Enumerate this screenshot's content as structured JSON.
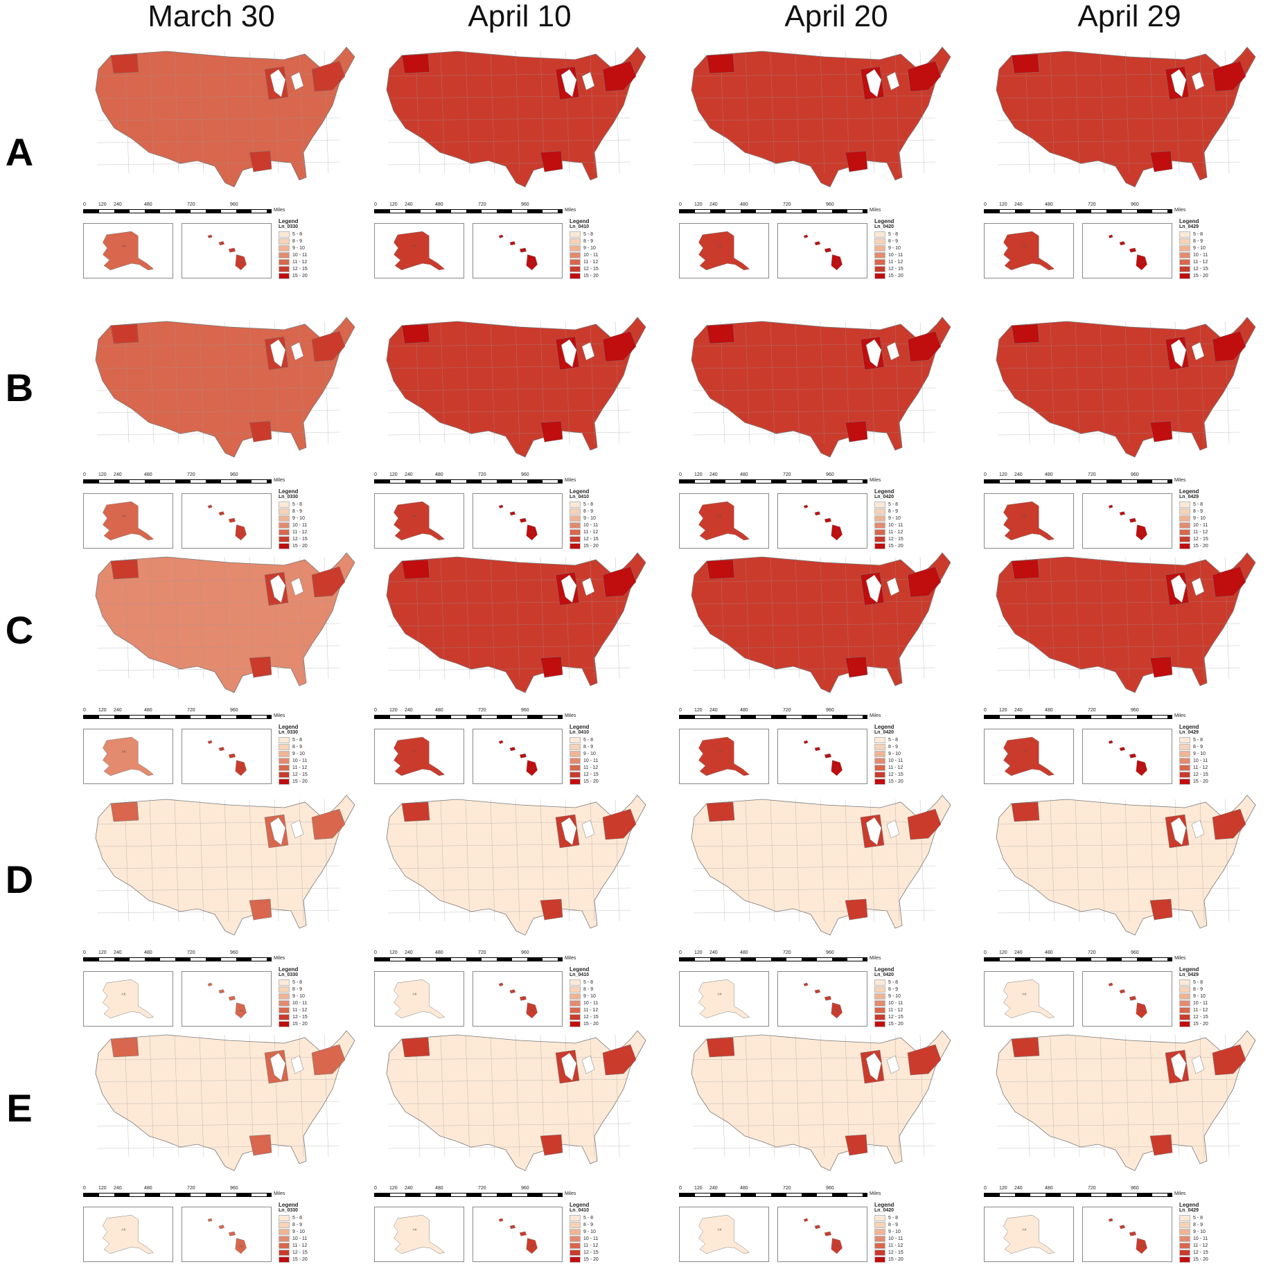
{
  "columns": [
    "March 30",
    "April 10",
    "April 20",
    "April 29"
  ],
  "rows": [
    "A",
    "B",
    "C",
    "D",
    "E"
  ],
  "legend": {
    "title": "Legend",
    "fields": [
      "Ln_0330",
      "Ln_0410",
      "Ln_0420",
      "Ln_0429"
    ],
    "classes": [
      "5 - 8",
      "8 - 9",
      "9 - 10",
      "10 - 11",
      "11 - 12",
      "12 - 15",
      "15 - 20"
    ],
    "colors": [
      "#fde9d6",
      "#f8d3b7",
      "#f0b494",
      "#e48a6e",
      "#d8674d",
      "#cb3b2c",
      "#c00d0e"
    ]
  },
  "scalebar": {
    "ticks": [
      "0",
      "120",
      "240",
      "480",
      "720",
      "960"
    ],
    "unit": "Miles"
  },
  "inset_labels": {
    "alaska": "AK",
    "hawaii": "HI"
  },
  "map_class_levels": {
    "A": [
      5,
      6,
      6,
      6
    ],
    "B": [
      5,
      6,
      6,
      6
    ],
    "C": [
      4,
      6,
      6,
      6
    ],
    "D": [
      1,
      1,
      1,
      1
    ],
    "E": [
      1,
      1,
      1,
      1
    ]
  },
  "hotspot_class_levels": {
    "A": [
      6,
      7,
      7,
      7
    ],
    "B": [
      6,
      7,
      7,
      7
    ],
    "C": [
      6,
      7,
      7,
      7
    ],
    "D": [
      5,
      6,
      6,
      6
    ],
    "E": [
      5,
      6,
      6,
      6
    ]
  }
}
